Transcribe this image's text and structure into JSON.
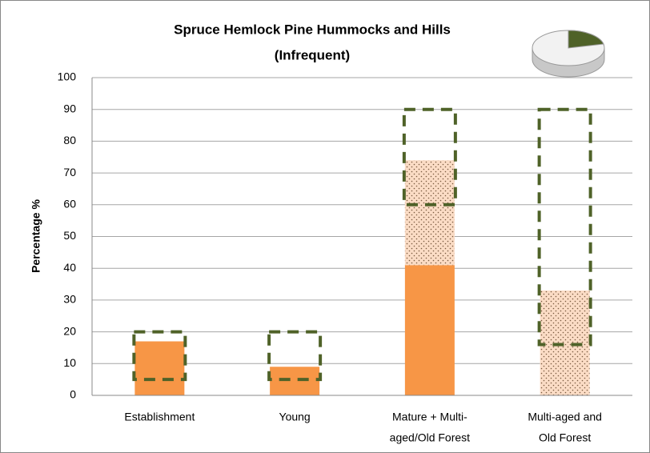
{
  "chart_data": {
    "type": "bar",
    "title": "Spruce Hemlock Pine Hummocks and Hills",
    "subtitle": "(Infrequent)",
    "y_label": "Percentage %",
    "categories": [
      [
        "Establishment"
      ],
      [
        "Young"
      ],
      [
        "Mature + Multi-",
        "aged/Old Forest"
      ],
      [
        "Multi-aged and",
        "Old Forest"
      ]
    ],
    "series": [
      {
        "color": "#f79646",
        "pattern": "solid",
        "values": [
          17,
          9,
          41,
          0
        ]
      },
      {
        "color": "#fbdcc5",
        "pattern": "dotted",
        "values": [
          0,
          0,
          33,
          33
        ]
      }
    ],
    "ranges": {
      "color": "#4f6228",
      "low": [
        5,
        5,
        60,
        16
      ],
      "high": [
        20,
        20,
        90,
        90
      ]
    },
    "ylim": [
      0,
      100
    ],
    "yticks": [
      0,
      10,
      20,
      30,
      40,
      50,
      60,
      70,
      80,
      90,
      100
    ],
    "grid": true
  }
}
